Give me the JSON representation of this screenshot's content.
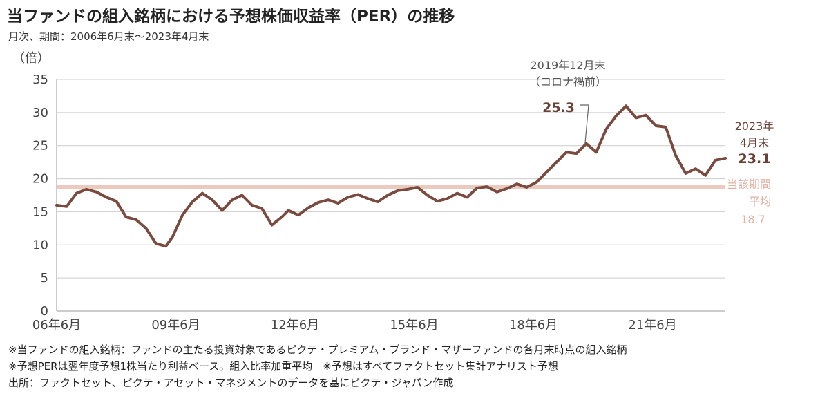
{
  "header": {
    "title": "当ファンドの組入銘柄における予想株価収益率（PER）の推移",
    "period": "月次、期間：2006年6月末～2023年4月末"
  },
  "footnotes": [
    "※当ファンドの組入銘柄：ファンドの主たる投資対象であるピクテ・プレミアム・ブランド・マザーファンドの各月末時点の組入銘柄",
    "※予想PERは翌年度予想1株当たり利益ベース。組入比率加重平均　※予想はすべてファクトセット集計アナリスト予想",
    "出所：ファクトセット、ピクテ・アセット・マネジメントのデータを基にピクテ・ジャパン作成"
  ],
  "colors": {
    "line": "#7a4a3f",
    "average": "#ecc9bf",
    "grid": "#cccccc",
    "annotation": "#6a3f34"
  },
  "chart_data": {
    "type": "line",
    "ylabel": "（倍）",
    "ylim": [
      0,
      35
    ],
    "yticks": [
      "0",
      "5",
      "10",
      "15",
      "20",
      "25",
      "30",
      "35"
    ],
    "xticks": [
      {
        "label": "06年6月",
        "t": 0
      },
      {
        "label": "09年6月",
        "t": 36
      },
      {
        "label": "12年6月",
        "t": 72
      },
      {
        "label": "15年6月",
        "t": 108
      },
      {
        "label": "18年6月",
        "t": 144
      },
      {
        "label": "21年6月",
        "t": 180
      }
    ],
    "x_range": [
      0,
      202
    ],
    "grid": "horizontal",
    "series": [
      {
        "x": [
          0,
          3,
          6,
          9,
          12,
          15,
          18,
          21,
          24,
          27,
          30,
          33,
          35,
          38,
          41,
          44,
          47,
          50,
          53,
          56,
          59,
          62,
          65,
          68,
          70,
          73,
          76,
          79,
          82,
          85,
          88,
          91,
          94,
          97,
          100,
          103,
          106,
          109,
          112,
          115,
          118,
          121,
          124,
          127,
          130,
          133,
          136,
          139,
          142,
          145,
          148,
          151,
          154,
          157,
          160,
          163,
          166,
          169,
          172,
          175,
          178,
          181,
          184,
          187,
          190,
          193,
          196,
          199,
          202
        ],
        "y": [
          16,
          15.8,
          17.8,
          18.4,
          18.0,
          17.2,
          16.6,
          14.2,
          13.8,
          12.5,
          10.2,
          9.8,
          11.2,
          14.5,
          16.5,
          17.8,
          16.8,
          15.2,
          16.8,
          17.5,
          16.0,
          15.5,
          13.0,
          14.2,
          15.2,
          14.5,
          15.6,
          16.4,
          16.8,
          16.3,
          17.2,
          17.6,
          17.0,
          16.5,
          17.5,
          18.2,
          18.4,
          18.7,
          17.5,
          16.6,
          17.0,
          17.8,
          17.2,
          18.6,
          18.8,
          18.0,
          18.5,
          19.2,
          18.7,
          19.5,
          21.0,
          22.5,
          24.0,
          23.8,
          25.3,
          24.0,
          27.5,
          29.5,
          31.0,
          29.2,
          29.6,
          28.0,
          27.8,
          23.5,
          20.8,
          21.5,
          20.5,
          22.8,
          23.1
        ]
      }
    ],
    "average": {
      "value": 18.7,
      "label_lines": [
        "当該期間",
        "平均"
      ],
      "value_label": "18.7"
    },
    "annotations": [
      {
        "lines": [
          "2019年12月末",
          "（コロナ禍前）"
        ],
        "value_label": "25.3",
        "x": 160,
        "y": 25.3
      },
      {
        "lines": [
          "2023年",
          "4月末"
        ],
        "value_label": "23.1",
        "x": 202,
        "y": 23.1
      }
    ]
  }
}
